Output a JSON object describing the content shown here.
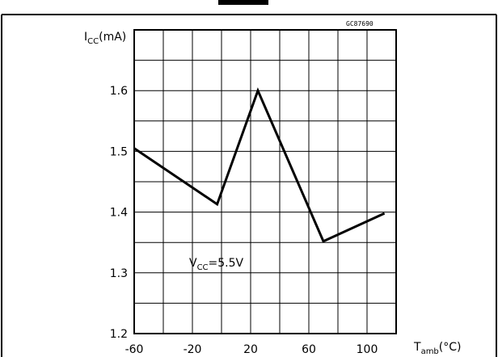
{
  "figure_code": "GC87690",
  "annotation": {
    "main": "V",
    "sub": "CC",
    "rest": "=5.5V"
  },
  "chart_data": {
    "type": "line",
    "title": "",
    "ylabel": {
      "main": "I",
      "sub": "CC",
      "rest": "(mA)"
    },
    "xlabel": {
      "main": "T",
      "sub": "amb",
      "rest": "(°C)"
    },
    "xlim": [
      -60,
      120
    ],
    "ylim": [
      1.2,
      1.7
    ],
    "xticks": [
      -60,
      -20,
      20,
      60,
      100
    ],
    "xtick_labels": [
      "-60",
      "-20",
      "20",
      "60",
      "100"
    ],
    "yticks": [
      1.2,
      1.3,
      1.4,
      1.5,
      1.6
    ],
    "ytick_labels": [
      "1.2",
      "1.3",
      "1.4",
      "1.5",
      "1.6"
    ],
    "grid": true,
    "series": [
      {
        "x": [
          -60,
          -3,
          25,
          70,
          112
        ],
        "y": [
          1.505,
          1.413,
          1.6,
          1.352,
          1.398
        ]
      }
    ]
  }
}
